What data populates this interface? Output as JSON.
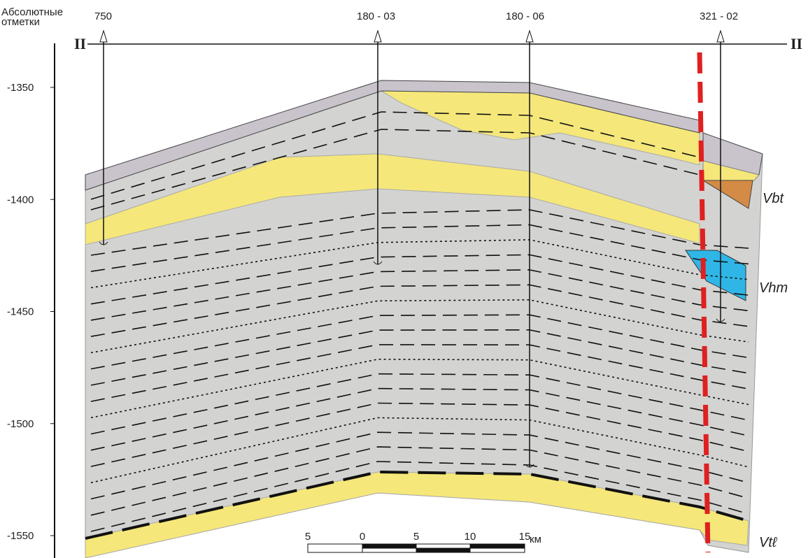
{
  "axis": {
    "label": "Абсолютные отметки",
    "ticks": [
      -1350,
      -1400,
      -1450,
      -1500,
      -1550
    ]
  },
  "section": {
    "start": "II",
    "end": "II"
  },
  "wells": [
    "750",
    "180 - 03",
    "180 - 06",
    "321 - 02"
  ],
  "formations": [
    "Vbt",
    "Vhm",
    "Vtℓ"
  ],
  "scale": {
    "labels": [
      "5",
      "0",
      "5",
      "10",
      "15"
    ],
    "unit": "км"
  }
}
